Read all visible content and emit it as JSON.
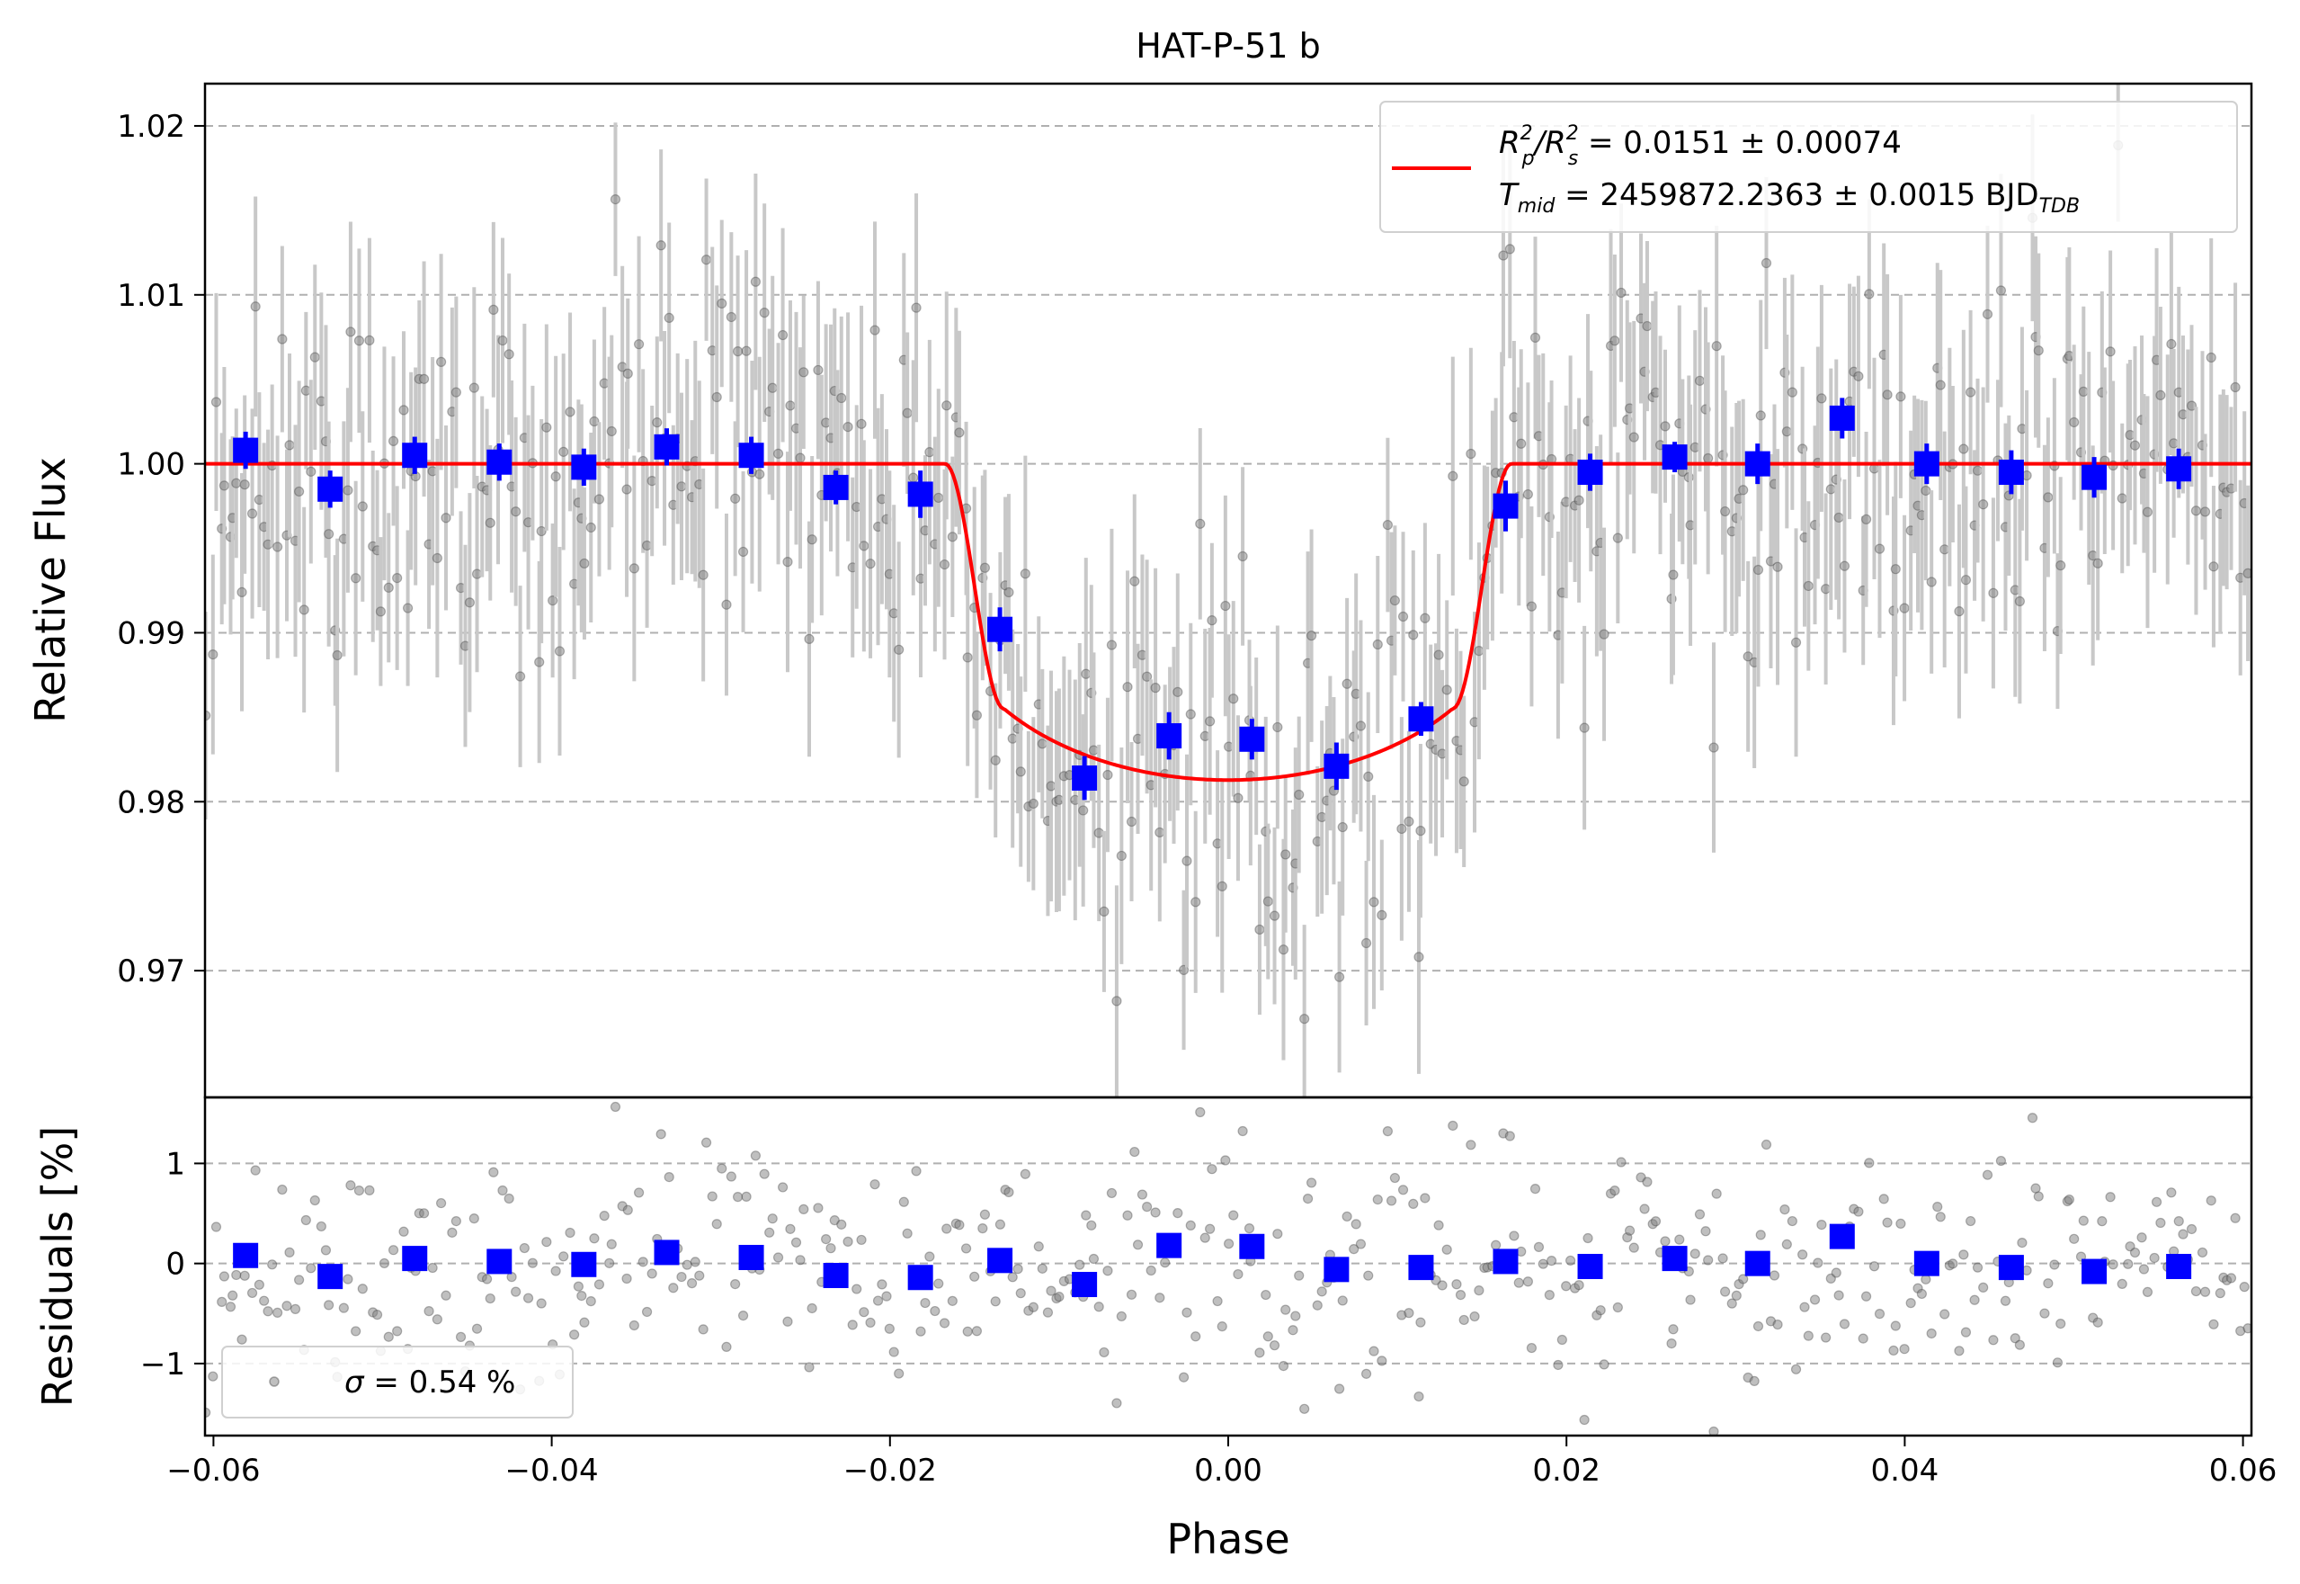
{
  "chart_data": [
    {
      "type": "scatter",
      "panel": "main",
      "title": "HAT-P-51 b",
      "xlabel": "Phase",
      "ylabel": "Relative Flux",
      "xlim": [
        -0.0605,
        0.0605
      ],
      "ylim": [
        0.9625,
        1.0225
      ],
      "xticks": [
        -0.06,
        -0.04,
        -0.02,
        0.0,
        0.02,
        0.04,
        0.06
      ],
      "xtick_labels": [
        "−0.06",
        "−0.04",
        "−0.02",
        "0.00",
        "0.02",
        "0.04",
        "0.06"
      ],
      "yticks": [
        0.97,
        0.98,
        0.99,
        1.0,
        1.01,
        1.02
      ],
      "ytick_labels": [
        "0.97",
        "0.98",
        "0.99",
        "1.00",
        "1.01",
        "1.02"
      ],
      "grid": "y, dashed",
      "legend": {
        "position": "top-right",
        "line1_main": "R",
        "line1_sub1": "p",
        "line1_sup1": "2",
        "line1_slash": "/R",
        "line1_sub2": "s",
        "line1_sup2": "2",
        "line1_value": " = 0.0151 ± 0.00074",
        "line2_main": "T",
        "line2_sub": "mid",
        "line2_value": " = 2459872.2363 ± 0.0015 BJD",
        "line2_tail_sub": "TDB"
      },
      "model": {
        "color": "#ff0000",
        "baseline": 1.0,
        "depth": 0.0151,
        "t14": 0.0335,
        "t23": 0.0265,
        "limb_u": 0.58
      },
      "binned": {
        "color": "#0000ff",
        "x": [
          -0.0581,
          -0.0531,
          -0.0481,
          -0.0431,
          -0.0381,
          -0.0332,
          -0.0282,
          -0.0232,
          -0.0182,
          -0.0135,
          -0.0085,
          -0.0035,
          0.0014,
          0.0064,
          0.0114,
          0.0164,
          0.0214,
          0.0264,
          0.0313,
          0.0363,
          0.0413,
          0.0463,
          0.0512,
          0.0562
        ],
        "y": [
          1.0008,
          0.9985,
          1.0005,
          1.0001,
          0.9998,
          1.001,
          1.0005,
          0.9986,
          0.9982,
          0.9902,
          0.9814,
          0.9839,
          0.9837,
          0.9821,
          0.9849,
          0.9975,
          0.9995,
          1.0004,
          1.0,
          1.0027,
          1.0,
          0.9995,
          0.9992,
          0.9997
        ],
        "err": [
          0.0011,
          0.0011,
          0.0011,
          0.0011,
          0.0011,
          0.0011,
          0.0011,
          0.001,
          0.0014,
          0.0013,
          0.0013,
          0.0014,
          0.0012,
          0.0014,
          0.001,
          0.0015,
          0.0011,
          0.0009,
          0.0012,
          0.0012,
          0.0012,
          0.0013,
          0.0012,
          0.0012
        ]
      },
      "raw_points": {
        "color": "#808080",
        "n": 470,
        "typical_err": 0.0055,
        "scatter": 0.0054
      }
    },
    {
      "type": "scatter",
      "panel": "residuals",
      "xlabel": "Phase",
      "ylabel": "Residuals [%]",
      "xlim": [
        -0.0605,
        0.0605
      ],
      "ylim": [
        -1.72,
        1.66
      ],
      "yticks": [
        -1,
        0,
        1
      ],
      "ytick_labels": [
        "−1",
        "0",
        "1"
      ],
      "grid": "y, dashed",
      "legend": {
        "position": "lower-left",
        "sigma_symbol": "σ",
        "sigma_text": " = 0.54 %"
      },
      "binned": {
        "color": "#0000ff",
        "x": [
          -0.0581,
          -0.0531,
          -0.0481,
          -0.0431,
          -0.0381,
          -0.0332,
          -0.0282,
          -0.0232,
          -0.0182,
          -0.0135,
          -0.0085,
          -0.0035,
          0.0014,
          0.0064,
          0.0114,
          0.0164,
          0.0214,
          0.0264,
          0.0313,
          0.0363,
          0.0413,
          0.0463,
          0.0512,
          0.0562
        ],
        "y": [
          0.08,
          -0.13,
          0.05,
          0.02,
          -0.01,
          0.11,
          0.06,
          -0.12,
          -0.14,
          0.03,
          -0.21,
          0.18,
          0.17,
          -0.06,
          -0.04,
          0.02,
          -0.03,
          0.05,
          0.0,
          0.27,
          0.0,
          -0.04,
          -0.08,
          -0.03
        ]
      }
    }
  ]
}
